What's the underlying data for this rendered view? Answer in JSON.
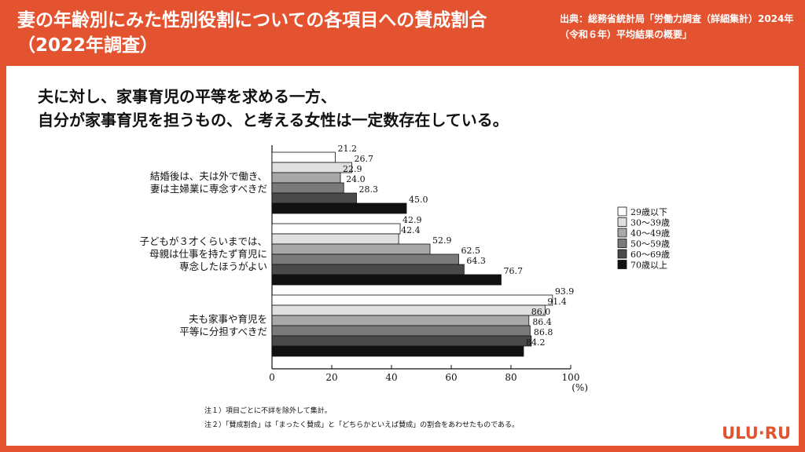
{
  "header": {
    "title": "妻の年齢別にみた性別役割についての各項目への賛成割合（2022年調査）",
    "source": "出典：総務省統計局「労働力調査（詳細集計）2024年（令和６年）平均結果の概要」"
  },
  "headline": {
    "line1": "夫に対し、家事育児の平等を求める一方、",
    "line2": "自分が家事育児を担うもの、と考える女性は一定数存在している。"
  },
  "chart_data": {
    "type": "bar",
    "orientation": "horizontal",
    "title": "",
    "xlabel": "(%)",
    "ylabel": "",
    "xlim": [
      0,
      100
    ],
    "xticks": [
      "0",
      "20",
      "40",
      "60",
      "80",
      "100"
    ],
    "categories": [
      [
        "結婚後は、夫は外で働き、",
        "妻は主婦業に専念すべきだ"
      ],
      [
        "子どもが３才くらいまでは、",
        "母親は仕事を持たず育児に",
        "専念したほうがよい"
      ],
      [
        "夫も家事や育児を",
        "平等に分担すべきだ"
      ]
    ],
    "series": [
      {
        "name": "29歳以下",
        "color": "#ffffff",
        "values": [
          21.2,
          42.9,
          93.9
        ]
      },
      {
        "name": "30～39歳",
        "color": "#e0e0e0",
        "values": [
          26.7,
          42.4,
          91.4
        ]
      },
      {
        "name": "40～49歳",
        "color": "#a8a8a8",
        "values": [
          22.9,
          52.9,
          86.0
        ]
      },
      {
        "name": "50～59歳",
        "color": "#7a7a7a",
        "values": [
          24.0,
          62.5,
          86.4
        ]
      },
      {
        "name": "60～69歳",
        "color": "#4a4a4a",
        "values": [
          28.3,
          64.3,
          86.8
        ]
      },
      {
        "name": "70歳以上",
        "color": "#111111",
        "values": [
          45.0,
          76.7,
          84.2
        ]
      }
    ],
    "legend_position": "right"
  },
  "notes": [
    "注１）項目ごとに不詳を除外して集計。",
    "注２）「賛成割合」は「まったく賛成」と「どちらかといえば賛成」の割合をあわせたものである。"
  ],
  "logo": "ULU·RU"
}
